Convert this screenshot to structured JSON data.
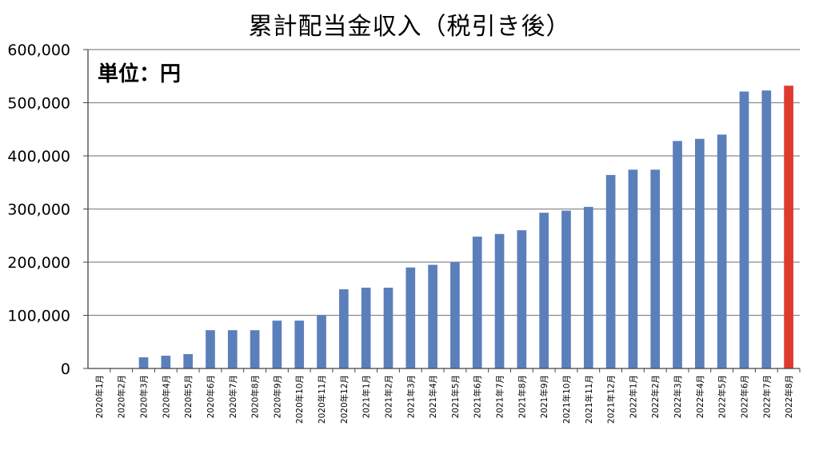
{
  "chart_data": {
    "type": "bar",
    "title": "累計配当金収入（税引き後）",
    "unit_label": "単位：円",
    "ylim": [
      0,
      600000
    ],
    "ytick_labels": [
      "0",
      "100,000",
      "200,000",
      "300,000",
      "400,000",
      "500,000",
      "600,000"
    ],
    "grid": true,
    "categories": [
      "2020年1月",
      "2020年2月",
      "2020年3月",
      "2020年4月",
      "2020年5月",
      "2020年6月",
      "2020年7月",
      "2020年8月",
      "2020年9月",
      "2020年10月",
      "2020年11月",
      "2020年12月",
      "2021年1月",
      "2021年2月",
      "2021年3月",
      "2021年4月",
      "2021年5月",
      "2021年6月",
      "2021年7月",
      "2021年8月",
      "2021年9月",
      "2021年10月",
      "2021年11月",
      "2021年12月",
      "2022年1月",
      "2022年2月",
      "2022年3月",
      "2022年4月",
      "2022年5月",
      "2022年6月",
      "2022年7月",
      "2022年8月"
    ],
    "values": [
      0,
      0,
      21000,
      24000,
      27000,
      72000,
      72000,
      72000,
      90000,
      90000,
      100000,
      149000,
      152000,
      152000,
      190000,
      195000,
      200000,
      248000,
      253000,
      260000,
      293000,
      297000,
      304000,
      364000,
      374000,
      374000,
      428000,
      432000,
      440000,
      521000,
      523000,
      532000
    ],
    "colors": {
      "bar": "#5b7fbb",
      "highlight": "#e03a2f",
      "grid": "#8a8a8a",
      "axis": "#444444"
    }
  }
}
